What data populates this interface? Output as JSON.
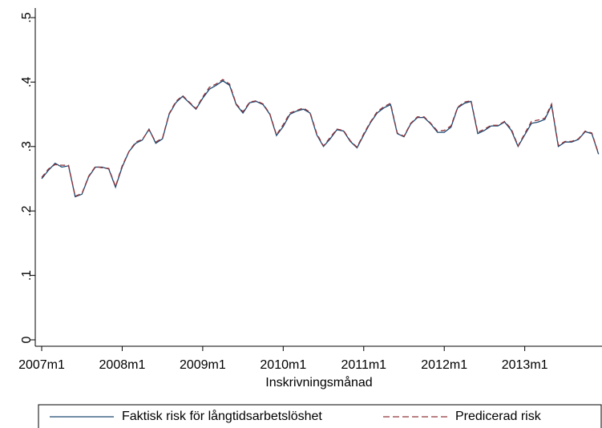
{
  "chart_data": {
    "type": "line",
    "xlabel": "Inskrivningsmånad",
    "categories": [
      "2007m1",
      null,
      null,
      null,
      null,
      null,
      null,
      null,
      null,
      null,
      null,
      null,
      "2008m1",
      null,
      null,
      null,
      null,
      null,
      null,
      null,
      null,
      null,
      null,
      null,
      "2009m1",
      null,
      null,
      null,
      null,
      null,
      null,
      null,
      null,
      null,
      null,
      null,
      "2010m1",
      null,
      null,
      null,
      null,
      null,
      null,
      null,
      null,
      null,
      null,
      null,
      "2011m1",
      null,
      null,
      null,
      null,
      null,
      null,
      null,
      null,
      null,
      null,
      null,
      "2012m1",
      null,
      null,
      null,
      null,
      null,
      null,
      null,
      null,
      null,
      null,
      null,
      "2013m1",
      null,
      null,
      null,
      null,
      null,
      null,
      null,
      null,
      null,
      null,
      null
    ],
    "series": [
      {
        "name": "Faktisk risk för långtidsarbetslöshet",
        "color": "#1a476f",
        "dash": false,
        "values": [
          0.25,
          0.263,
          0.274,
          0.268,
          0.27,
          0.222,
          0.226,
          0.253,
          0.268,
          0.268,
          0.265,
          0.237,
          0.268,
          0.292,
          0.305,
          0.31,
          0.327,
          0.305,
          0.312,
          0.35,
          0.368,
          0.378,
          0.368,
          0.358,
          0.375,
          0.389,
          0.395,
          0.402,
          0.395,
          0.365,
          0.352,
          0.368,
          0.37,
          0.365,
          0.35,
          0.317,
          0.331,
          0.35,
          0.355,
          0.358,
          0.352,
          0.318,
          0.3,
          0.312,
          0.326,
          0.324,
          0.308,
          0.298,
          0.318,
          0.337,
          0.352,
          0.36,
          0.365,
          0.32,
          0.315,
          0.335,
          0.345,
          0.345,
          0.335,
          0.322,
          0.322,
          0.33,
          0.36,
          0.367,
          0.37,
          0.32,
          0.325,
          0.332,
          0.332,
          0.338,
          0.325,
          0.3,
          0.318,
          0.336,
          0.338,
          0.342,
          0.364,
          0.3,
          0.307,
          0.307,
          0.311,
          0.323,
          0.32,
          0.288
        ]
      },
      {
        "name": "Predicerad risk",
        "color": "#90353b",
        "dash": true,
        "values": [
          0.252,
          0.265,
          0.272,
          0.271,
          0.271,
          0.223,
          0.227,
          0.254,
          0.269,
          0.267,
          0.266,
          0.238,
          0.27,
          0.292,
          0.307,
          0.311,
          0.326,
          0.307,
          0.313,
          0.351,
          0.37,
          0.379,
          0.369,
          0.359,
          0.377,
          0.392,
          0.397,
          0.404,
          0.397,
          0.366,
          0.354,
          0.369,
          0.371,
          0.366,
          0.351,
          0.318,
          0.334,
          0.352,
          0.356,
          0.36,
          0.353,
          0.32,
          0.301,
          0.314,
          0.327,
          0.325,
          0.309,
          0.299,
          0.32,
          0.338,
          0.354,
          0.362,
          0.367,
          0.321,
          0.316,
          0.336,
          0.346,
          0.346,
          0.336,
          0.324,
          0.325,
          0.332,
          0.361,
          0.369,
          0.371,
          0.322,
          0.327,
          0.333,
          0.333,
          0.339,
          0.327,
          0.301,
          0.32,
          0.339,
          0.341,
          0.344,
          0.366,
          0.302,
          0.308,
          0.308,
          0.312,
          0.324,
          0.321,
          0.289
        ]
      }
    ],
    "ylim": [
      0,
      0.5
    ],
    "yticks": [
      0,
      {
        "value": 0.1,
        "label": ".1"
      },
      {
        "value": 0.2,
        "label": ".2"
      },
      {
        "value": 0.3,
        "label": ".3"
      },
      {
        "value": 0.4,
        "label": ".4"
      },
      {
        "value": 0.5,
        "label": ".5"
      }
    ]
  }
}
